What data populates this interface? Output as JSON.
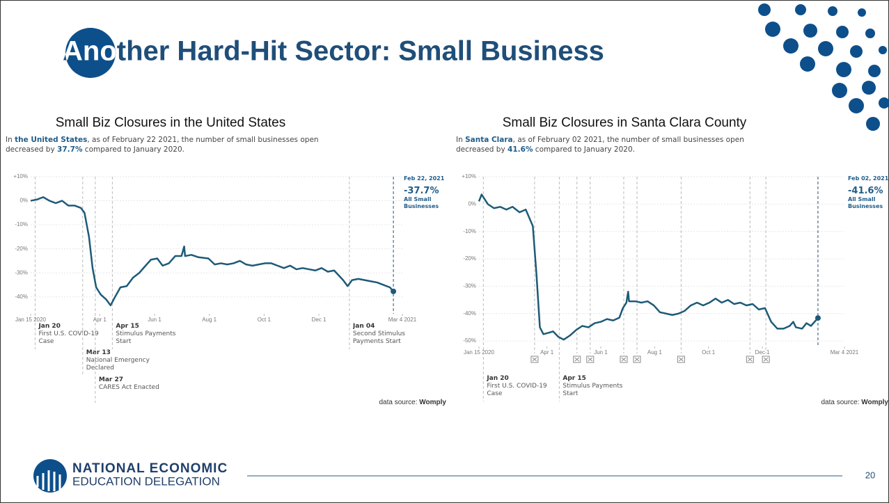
{
  "title": "Another Hard-Hit Sector:  Small Business",
  "footer": {
    "org_line1": "NATIONAL ECONOMIC",
    "org_line2": "EDUCATION DELEGATION",
    "page": "20"
  },
  "chart_data": [
    {
      "type": "line",
      "title": "Small Biz Closures in the United States",
      "subtitle_parts": [
        "In ",
        "the United States",
        ", as of February 22 2021, the number of small businesses open decreased by ",
        "37.7%",
        " compared to January 2020."
      ],
      "x": [
        "2020-01-15",
        "2020-01-22",
        "2020-01-29",
        "2020-02-05",
        "2020-02-12",
        "2020-02-19",
        "2020-02-26",
        "2020-03-04",
        "2020-03-11",
        "2020-03-15",
        "2020-03-20",
        "2020-03-24",
        "2020-03-28",
        "2020-04-02",
        "2020-04-08",
        "2020-04-13",
        "2020-04-18",
        "2020-04-24",
        "2020-05-01",
        "2020-05-08",
        "2020-05-15",
        "2020-05-22",
        "2020-05-28",
        "2020-06-04",
        "2020-06-10",
        "2020-06-17",
        "2020-06-24",
        "2020-07-01",
        "2020-07-04",
        "2020-07-05",
        "2020-07-12",
        "2020-07-20",
        "2020-07-31",
        "2020-08-07",
        "2020-08-14",
        "2020-08-21",
        "2020-08-28",
        "2020-09-04",
        "2020-09-11",
        "2020-09-18",
        "2020-09-25",
        "2020-10-02",
        "2020-10-09",
        "2020-10-16",
        "2020-10-23",
        "2020-10-30",
        "2020-11-06",
        "2020-11-13",
        "2020-11-20",
        "2020-11-27",
        "2020-12-04",
        "2020-12-11",
        "2020-12-18",
        "2020-12-28",
        "2021-01-02",
        "2021-01-07",
        "2021-01-14",
        "2021-01-21",
        "2021-01-28",
        "2021-02-04",
        "2021-02-11",
        "2021-02-18",
        "2021-02-22"
      ],
      "series": [
        {
          "name": "All Small Businesses",
          "color": "#1d5a78",
          "values": [
            0,
            0.5,
            1.5,
            0,
            -1,
            0,
            -2,
            -2,
            -3,
            -5,
            -15,
            -28,
            -36,
            -39,
            -41,
            -43.5,
            -40,
            -36,
            -35.5,
            -32,
            -30,
            -27,
            -24.5,
            -24,
            -27,
            -26,
            -23,
            -23,
            -19,
            -23,
            -22.5,
            -23.5,
            -24,
            -26.5,
            -26,
            -26.5,
            -26,
            -25,
            -26.5,
            -27,
            -26.5,
            -26,
            -26,
            -27,
            -28,
            -27,
            -28.5,
            -28,
            -28.5,
            -29,
            -28,
            -29.5,
            -29,
            -33,
            -35.5,
            -33,
            -32.5,
            -33,
            -33.5,
            -34,
            -35,
            -36,
            -37.7
          ]
        }
      ],
      "xlim": [
        "2020-01-15",
        "2021-03-04"
      ],
      "xticks": [
        {
          "value": "2020-01-15",
          "label": "Jan 15 2020"
        },
        {
          "value": "2020-04-01",
          "label": "Apr 1"
        },
        {
          "value": "2020-06-01",
          "label": "Jun 1"
        },
        {
          "value": "2020-08-01",
          "label": "Aug 1"
        },
        {
          "value": "2020-10-01",
          "label": "Oct 1"
        },
        {
          "value": "2020-12-01",
          "label": "Dec 1"
        },
        {
          "value": "2021-03-04",
          "label": "Mar 4 2021"
        }
      ],
      "ylim": [
        -47,
        10
      ],
      "yticks": [
        {
          "value": 10,
          "label": "+10%"
        },
        {
          "value": 0,
          "label": "0%"
        },
        {
          "value": -10,
          "label": "-10%"
        },
        {
          "value": -20,
          "label": "-20%"
        },
        {
          "value": -30,
          "label": "-30%"
        },
        {
          "value": -40,
          "label": "-40%"
        }
      ],
      "grid": true,
      "annotations": [
        {
          "x": "2020-01-20",
          "date": "Jan 20",
          "text": "First U.S. COVID-19 Case"
        },
        {
          "x": "2020-03-13",
          "date": "Mar 13",
          "text": "National Emergency Declared"
        },
        {
          "x": "2020-03-27",
          "date": "Mar 27",
          "text": "CARES Act Enacted"
        },
        {
          "x": "2020-04-15",
          "date": "Apr 15",
          "text": "Stimulus Payments Start"
        },
        {
          "x": "2021-01-04",
          "date": "Jan 04",
          "text": "Second Stimulus Payments Start"
        }
      ],
      "end_label": {
        "date": "Feb 22, 2021",
        "value_label": "-37.7%"
      },
      "source_prefix": "data source:",
      "source": "Womply"
    },
    {
      "type": "line",
      "title": "Small Biz Closures in Santa Clara County",
      "subtitle_parts": [
        "In ",
        "Santa Clara",
        ", as of February 02 2021, the number of small businesses open decreased by ",
        "41.6%",
        " compared to January 2020."
      ],
      "x": [
        "2020-01-15",
        "2020-01-18",
        "2020-01-25",
        "2020-02-01",
        "2020-02-08",
        "2020-02-15",
        "2020-02-22",
        "2020-03-01",
        "2020-03-08",
        "2020-03-12",
        "2020-03-16",
        "2020-03-20",
        "2020-03-24",
        "2020-03-28",
        "2020-04-03",
        "2020-04-08",
        "2020-04-14",
        "2020-04-20",
        "2020-04-27",
        "2020-05-04",
        "2020-05-11",
        "2020-05-18",
        "2020-05-25",
        "2020-06-01",
        "2020-06-08",
        "2020-06-15",
        "2020-06-22",
        "2020-06-26",
        "2020-06-30",
        "2020-07-02",
        "2020-07-03",
        "2020-07-10",
        "2020-07-17",
        "2020-07-24",
        "2020-07-31",
        "2020-08-07",
        "2020-08-14",
        "2020-08-21",
        "2020-08-28",
        "2020-09-04",
        "2020-09-11",
        "2020-09-18",
        "2020-09-25",
        "2020-10-02",
        "2020-10-09",
        "2020-10-16",
        "2020-10-23",
        "2020-10-30",
        "2020-11-06",
        "2020-11-13",
        "2020-11-20",
        "2020-11-27",
        "2020-12-04",
        "2020-12-11",
        "2020-12-18",
        "2020-12-25",
        "2021-01-01",
        "2021-01-05",
        "2021-01-08",
        "2021-01-15",
        "2021-01-20",
        "2021-01-25",
        "2021-02-02"
      ],
      "series": [
        {
          "name": "All Small Businesses",
          "color": "#1d5a78",
          "values": [
            1,
            3.5,
            0,
            -1.5,
            -1,
            -2,
            -1,
            -3,
            -2,
            -5,
            -8,
            -25,
            -45,
            -47.5,
            -47,
            -46.5,
            -48.5,
            -49.5,
            -48,
            -46,
            -44.5,
            -45,
            -43.5,
            -43,
            -42,
            -42.5,
            -41.5,
            -38,
            -36,
            -32,
            -35.5,
            -35.5,
            -36,
            -35.5,
            -37,
            -39.5,
            -40,
            -40.5,
            -40,
            -39,
            -37,
            -36,
            -37,
            -36,
            -34.5,
            -36,
            -35,
            -36.5,
            -36,
            -37,
            -36.5,
            -38.5,
            -38,
            -43,
            -45.5,
            -45.5,
            -44.5,
            -43,
            -45,
            -45.5,
            -43.5,
            -44.5,
            -41.6
          ]
        }
      ],
      "xlim": [
        "2020-01-15",
        "2021-03-04"
      ],
      "xticks": [
        {
          "value": "2020-01-15",
          "label": "Jan 15 2020"
        },
        {
          "value": "2020-04-01",
          "label": "Apr 1"
        },
        {
          "value": "2020-06-01",
          "label": "Jun 1"
        },
        {
          "value": "2020-08-01",
          "label": "Aug 1"
        },
        {
          "value": "2020-10-01",
          "label": "Oct 1"
        },
        {
          "value": "2020-12-01",
          "label": "Dec 1"
        },
        {
          "value": "2021-03-04",
          "label": "Mar 4 2021"
        }
      ],
      "ylim": [
        -52,
        10
      ],
      "yticks": [
        {
          "value": 10,
          "label": "+10%"
        },
        {
          "value": 0,
          "label": "0%"
        },
        {
          "value": -10,
          "label": "-10%"
        },
        {
          "value": -20,
          "label": "-20%"
        },
        {
          "value": -30,
          "label": "-30%"
        },
        {
          "value": -40,
          "label": "-40%"
        },
        {
          "value": -50,
          "label": "-50%"
        }
      ],
      "grid": true,
      "annotations": [
        {
          "x": "2020-01-20",
          "date": "Jan 20",
          "text": "First U.S. COVID-19 Case"
        },
        {
          "x": "2020-04-15",
          "date": "Apr 15",
          "text": "Stimulus Payments Start"
        }
      ],
      "event_dates": [
        "2020-03-18",
        "2020-05-05",
        "2020-05-20",
        "2020-06-27",
        "2020-07-12",
        "2020-08-31",
        "2020-11-17",
        "2020-12-05"
      ],
      "end_label": {
        "date": "Feb 02, 2021",
        "value_label": "-41.6%"
      },
      "source_prefix": "data source:",
      "source": "Womply"
    }
  ]
}
